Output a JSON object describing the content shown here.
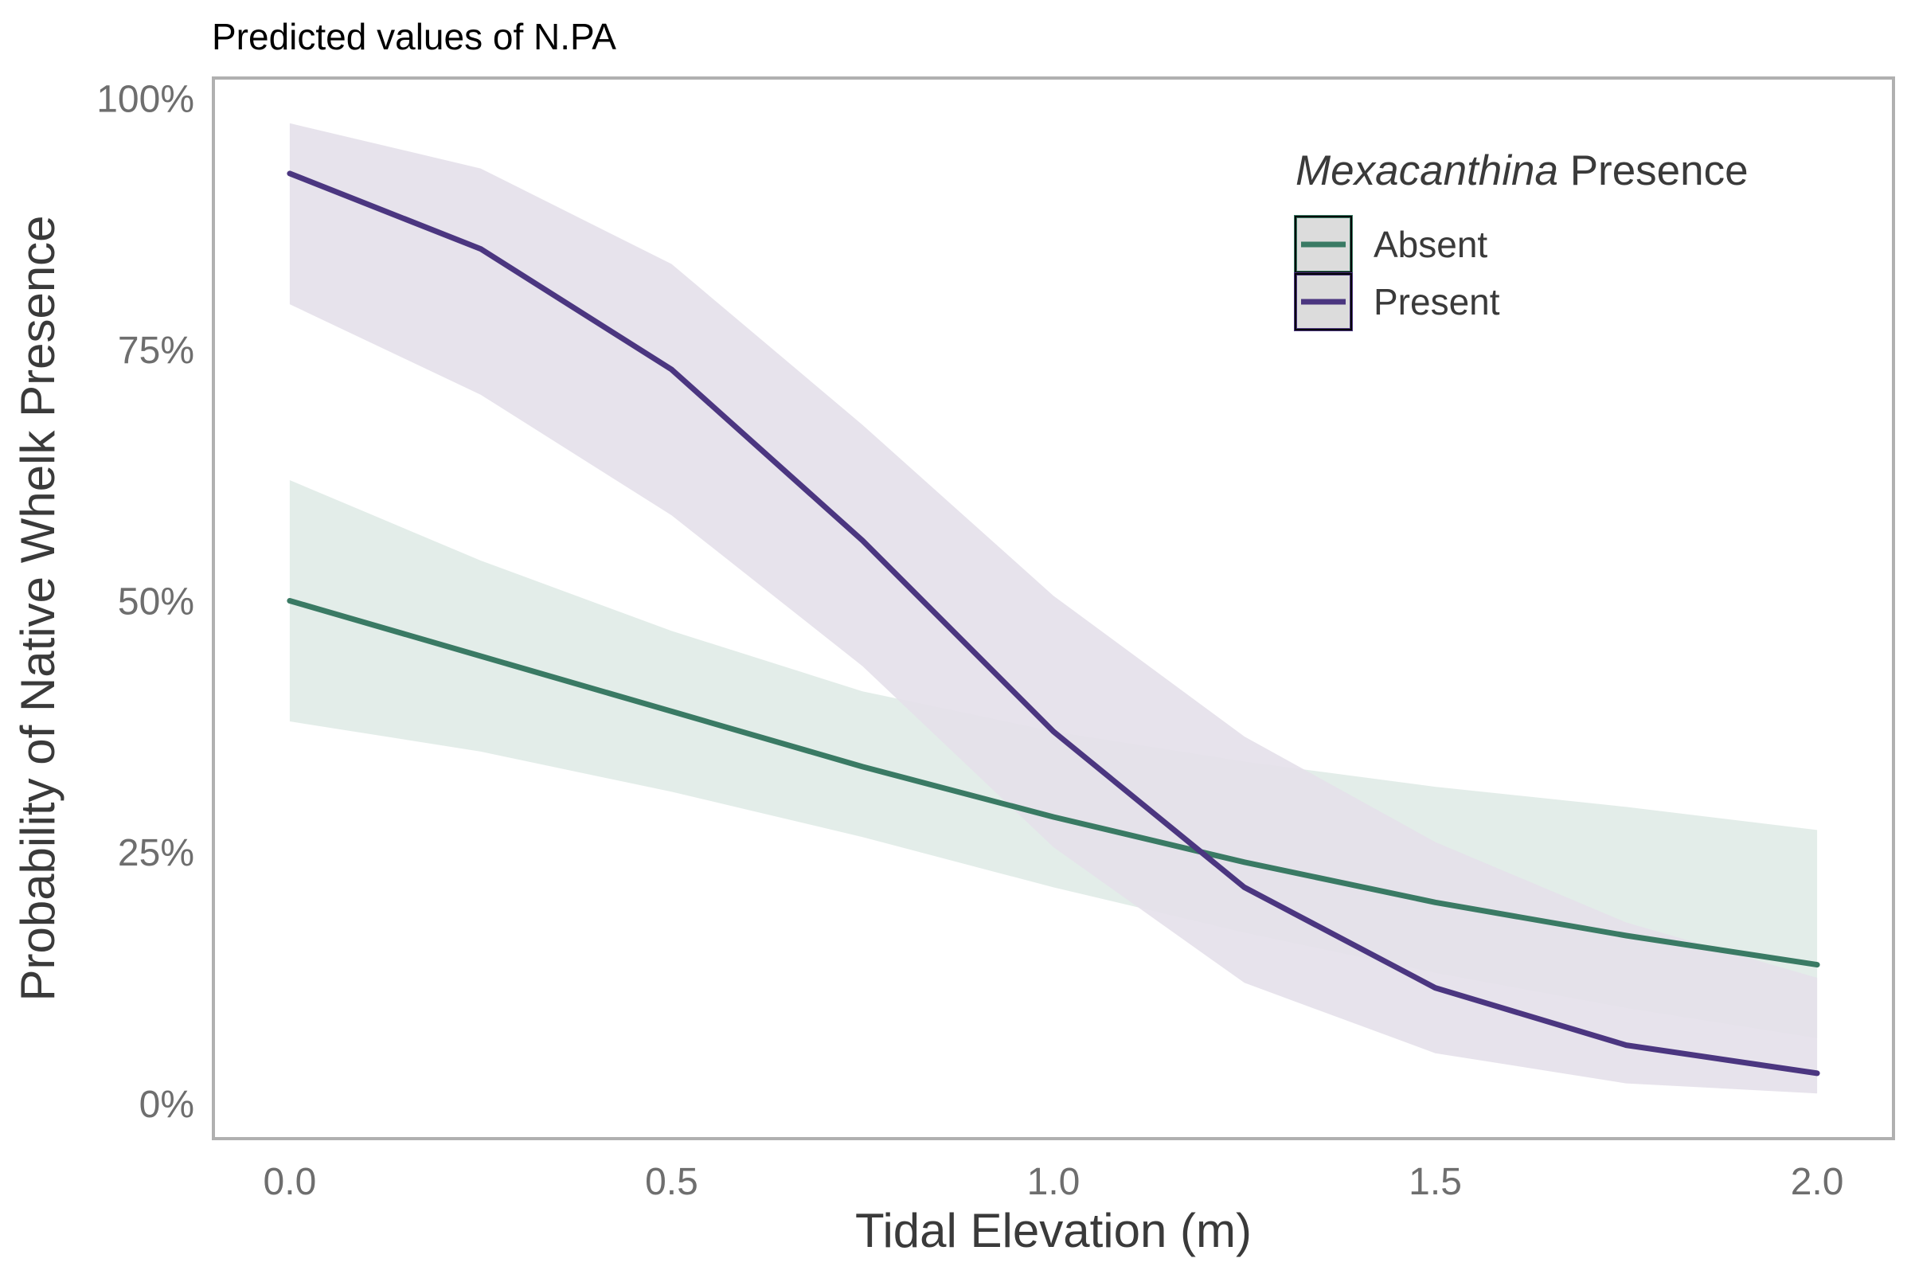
{
  "chart_data": {
    "type": "line",
    "title": "Predicted values of N.PA",
    "xlabel": "Tidal Elevation (m)",
    "ylabel": "Probability of Native Whelk Presence",
    "xlim": [
      -0.1,
      2.1
    ],
    "ylim": [
      -0.035,
      1.02
    ],
    "x_ticks": [
      0,
      0.5,
      1,
      1.5,
      2
    ],
    "x_tick_labels": [
      "0.0",
      "0.5",
      "1.0",
      "1.5",
      "2.0"
    ],
    "y_ticks": [
      0,
      0.25,
      0.5,
      0.75,
      1
    ],
    "y_tick_labels": [
      "0%",
      "25%",
      "50%",
      "75%",
      "100%"
    ],
    "grid": false,
    "legend": {
      "title_italic": "Mexacanthina",
      "title_rest": " Presence",
      "position": "top-right"
    },
    "x": [
      0,
      0.25,
      0.5,
      0.75,
      1.0,
      1.25,
      1.5,
      1.75,
      2.0
    ],
    "series": [
      {
        "name": "Absent",
        "color": "#3a7a64",
        "fill_color": "#e0ebe7",
        "values": [
          0.5,
          0.445,
          0.39,
          0.335,
          0.285,
          0.24,
          0.2,
          0.167,
          0.138
        ],
        "lower": [
          0.38,
          0.35,
          0.31,
          0.265,
          0.215,
          0.17,
          0.13,
          0.095,
          0.065
        ],
        "upper": [
          0.62,
          0.54,
          0.47,
          0.41,
          0.37,
          0.34,
          0.315,
          0.295,
          0.272
        ]
      },
      {
        "name": "Present",
        "color": "#4b3680",
        "fill_color": "#e4e0ea",
        "values": [
          0.925,
          0.85,
          0.73,
          0.56,
          0.37,
          0.215,
          0.115,
          0.058,
          0.03
        ],
        "lower": [
          0.795,
          0.705,
          0.585,
          0.435,
          0.255,
          0.12,
          0.05,
          0.02,
          0.01
        ],
        "upper": [
          0.975,
          0.93,
          0.835,
          0.675,
          0.505,
          0.365,
          0.26,
          0.18,
          0.125
        ]
      }
    ]
  }
}
